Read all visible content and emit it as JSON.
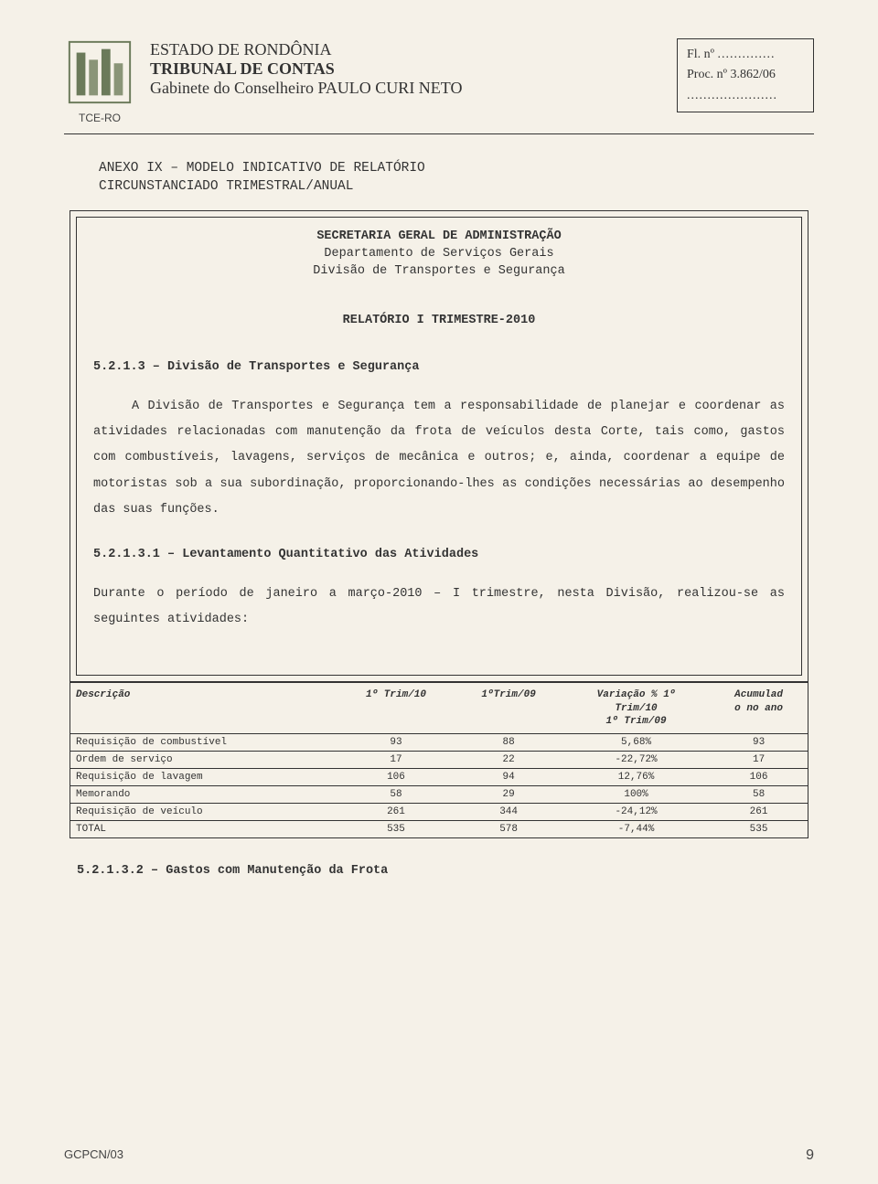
{
  "header": {
    "logo_label": "TCE-RO",
    "org_line1": "ESTADO DE RONDÔNIA",
    "org_line2": "TRIBUNAL DE CONTAS",
    "org_line3": "Gabinete do Conselheiro PAULO CURI NETO",
    "fl_label": "Fl. nº",
    "fl_dots": "..............",
    "proc_label": "Proc. nº 3.862/06",
    "proc_dots": "......................"
  },
  "title": {
    "line1": "ANEXO IX – MODELO INDICATIVO DE RELATÓRIO",
    "line2": "CIRCUNSTANCIADO TRIMESTRAL/ANUAL"
  },
  "dept": {
    "line1": "SECRETARIA GERAL DE ADMINISTRAÇÃO",
    "line2": "Departamento de Serviços Gerais",
    "line3": "Divisão de Transportes e Segurança"
  },
  "report_label": "RELATÓRIO I TRIMESTRE-2010",
  "section_5213": {
    "heading": "5.2.1.3 – Divisão de Transportes e Segurança",
    "body": "A Divisão de Transportes e Segurança tem a responsabilidade de planejar e coordenar as atividades relacionadas com manutenção da frota de veículos desta Corte, tais como, gastos com combustíveis, lavagens, serviços de mecânica e outros; e, ainda, coordenar a equipe de motoristas sob a sua subordinação, proporcionando-lhes as condições necessárias ao desempenho das suas funções."
  },
  "section_52131": {
    "heading": "5.2.1.3.1 – Levantamento Quantitativo das Atividades",
    "body": "Durante o período de janeiro a março-2010 – I trimestre, nesta Divisão, realizou-se as seguintes atividades:"
  },
  "table": {
    "columns": {
      "c0": "Descrição",
      "c1": "1º Trim/10",
      "c2": "1ºTrim/09",
      "c3_l1": "Variação % 1º",
      "c3_l2": "Trim/10",
      "c3_l3": "1º Trim/09",
      "c4_l1": "Acumulad",
      "c4_l2": "o no ano"
    },
    "rows": [
      {
        "desc": "Requisição de combustível",
        "a": "93",
        "b": "88",
        "v": "5,68%",
        "acc": "93"
      },
      {
        "desc": "Ordem de serviço",
        "a": "17",
        "b": "22",
        "v": "-22,72%",
        "acc": "17"
      },
      {
        "desc": "Requisição de lavagem",
        "a": "106",
        "b": "94",
        "v": "12,76%",
        "acc": "106"
      },
      {
        "desc": "Memorando",
        "a": "58",
        "b": "29",
        "v": "100%",
        "acc": "58"
      },
      {
        "desc": "Requisição de veículo",
        "a": "261",
        "b": "344",
        "v": "-24,12%",
        "acc": "261"
      },
      {
        "desc": "TOTAL",
        "a": "535",
        "b": "578",
        "v": "-7,44%",
        "acc": "535"
      }
    ]
  },
  "section_52132": {
    "heading": "5.2.1.3.2 – Gastos com Manutenção da Frota"
  },
  "footer": {
    "left": "GCPCN/03",
    "page": "9"
  },
  "colors": {
    "logo_fill": "#6b7a5a",
    "logo_accent": "#8a9578"
  }
}
